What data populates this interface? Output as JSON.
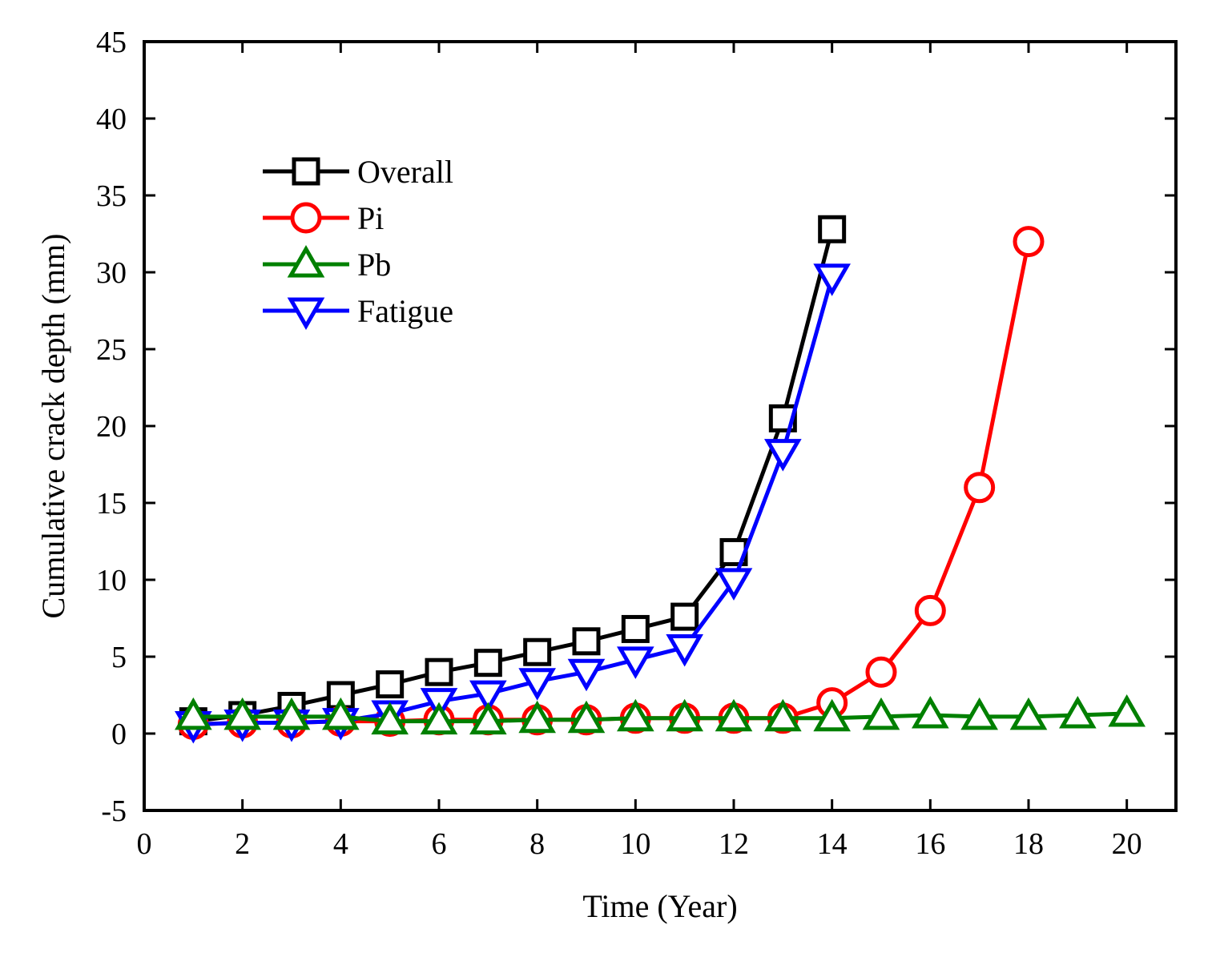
{
  "chart_data": {
    "type": "line",
    "title": "",
    "xlabel": "Time (Year)",
    "ylabel": "Cumulative crack depth (mm)",
    "xlim": [
      0,
      21
    ],
    "ylim": [
      -5,
      45
    ],
    "x_ticks": [
      0,
      2,
      4,
      6,
      8,
      10,
      12,
      14,
      16,
      18,
      20
    ],
    "y_ticks": [
      -5,
      0,
      5,
      10,
      15,
      20,
      25,
      30,
      35,
      40,
      45
    ],
    "legend_position": "top-left",
    "series": [
      {
        "name": "Overall",
        "color": "#000000",
        "marker": "square",
        "x": [
          1,
          2,
          3,
          4,
          5,
          6,
          7,
          8,
          9,
          10,
          11,
          12,
          13,
          14
        ],
        "values": [
          0.8,
          1.2,
          1.8,
          2.5,
          3.2,
          4.0,
          4.6,
          5.3,
          6.0,
          6.8,
          7.6,
          11.8,
          20.5,
          32.8
        ]
      },
      {
        "name": "Pi",
        "color": "#ff0000",
        "marker": "circle",
        "x": [
          1,
          2,
          3,
          4,
          5,
          6,
          7,
          8,
          9,
          10,
          11,
          12,
          13,
          14,
          15,
          16,
          17,
          18
        ],
        "values": [
          0.6,
          0.7,
          0.7,
          0.8,
          0.8,
          0.9,
          0.9,
          0.9,
          0.9,
          1.0,
          1.0,
          1.0,
          1.0,
          2.0,
          4.0,
          8.0,
          16.0,
          32.0
        ]
      },
      {
        "name": "Pb",
        "color": "#008000",
        "marker": "triangle-up",
        "x": [
          1,
          2,
          3,
          4,
          5,
          6,
          7,
          8,
          9,
          10,
          11,
          12,
          13,
          14,
          15,
          16,
          17,
          18,
          19,
          20
        ],
        "values": [
          1.1,
          1.1,
          1.1,
          1.1,
          0.8,
          0.8,
          0.8,
          0.9,
          0.9,
          1.0,
          1.0,
          1.0,
          1.0,
          1.0,
          1.1,
          1.2,
          1.1,
          1.1,
          1.2,
          1.3
        ]
      },
      {
        "name": "Fatigue",
        "color": "#0000ff",
        "marker": "triangle-down",
        "x": [
          1,
          2,
          3,
          4,
          5,
          6,
          7,
          8,
          9,
          10,
          11,
          12,
          13,
          14
        ],
        "values": [
          0.6,
          0.7,
          0.7,
          0.8,
          1.3,
          2.1,
          2.6,
          3.4,
          4.0,
          4.8,
          5.6,
          9.9,
          18.3,
          29.7
        ]
      }
    ]
  }
}
